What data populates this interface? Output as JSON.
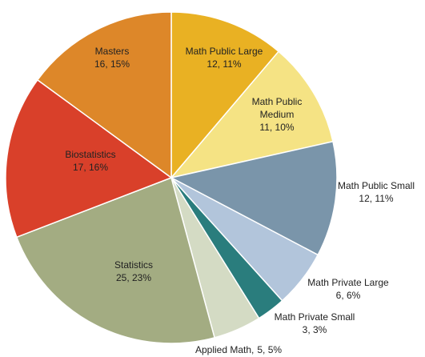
{
  "chart_data": {
    "type": "pie",
    "categories": [
      "Math Public Large",
      "Math Public Medium",
      "Math Public Small",
      "Math Private Large",
      "Math Private Small",
      "Applied Math",
      "Statistics",
      "Biostatistics",
      "Masters"
    ],
    "values": [
      12,
      11,
      12,
      6,
      3,
      5,
      25,
      17,
      16
    ],
    "value_labels": [
      "12, 11%",
      "11, 10%",
      "12, 11%",
      "6, 6%",
      "3, 3%",
      "5, 5%",
      "25, 23%",
      "17, 16%",
      "16, 15%"
    ],
    "colors": [
      "#e9b123",
      "#f5e384",
      "#7a95aa",
      "#b2c5db",
      "#2a7d7d",
      "#d4dbc4",
      "#a3ac82",
      "#d9402a",
      "#dd8729"
    ]
  }
}
